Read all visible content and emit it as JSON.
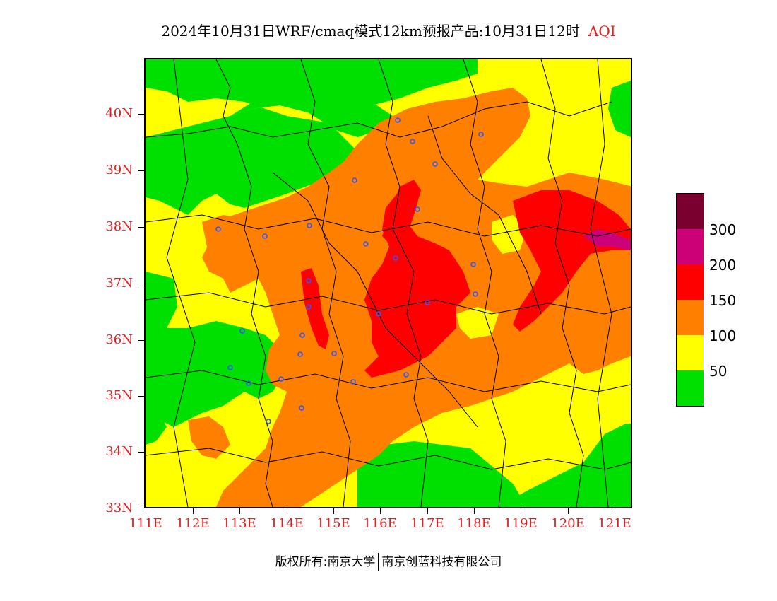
{
  "title": {
    "main": "2024年10月31日WRF/cmaq模式12km预报产品:10月31日12时",
    "variable": "AQI"
  },
  "map": {
    "lat_labels": [
      "40N",
      "39N",
      "38N",
      "37N",
      "36N",
      "35N",
      "34N",
      "33N"
    ],
    "lon_labels": [
      "111E",
      "112E",
      "113E",
      "114E",
      "115E",
      "116E",
      "117E",
      "118E",
      "119E",
      "120E",
      "121E"
    ],
    "lon_range": [
      111,
      121.4
    ],
    "lat_range": [
      33,
      41
    ]
  },
  "legend": {
    "colors": [
      "#7a0030",
      "#cc0077",
      "#ff0000",
      "#ff8000",
      "#ffff00",
      "#00e000"
    ],
    "labels": [
      "300",
      "200",
      "150",
      "100",
      "50"
    ]
  },
  "footer": {
    "copyright": "版权所有:南京大学",
    "company": "南京创蓝科技有限公司"
  }
}
